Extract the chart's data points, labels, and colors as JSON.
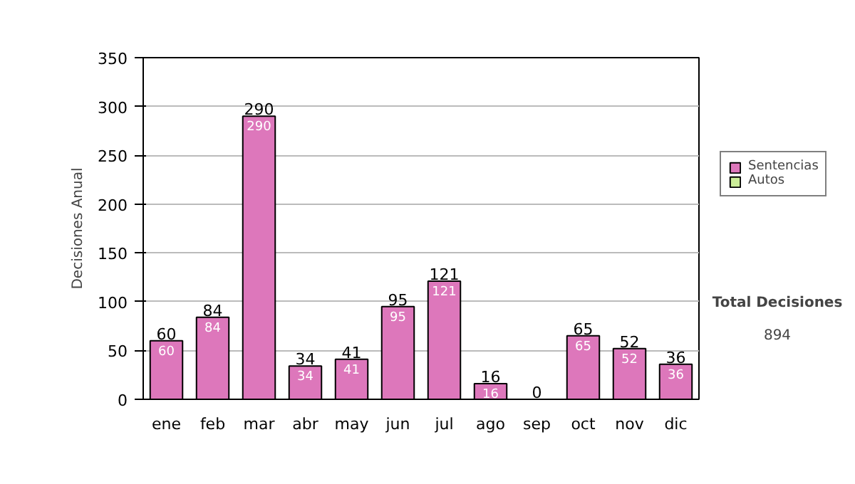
{
  "chart_data": {
    "type": "bar",
    "stacked": true,
    "ylabel": "Decisiones Anual",
    "categories": [
      "ene",
      "feb",
      "mar",
      "abr",
      "may",
      "jun",
      "jul",
      "ago",
      "sep",
      "oct",
      "nov",
      "dic"
    ],
    "series": [
      {
        "name": "Sentencias",
        "color": "#dd77bb",
        "values": [
          60,
          84,
          290,
          34,
          41,
          95,
          121,
          16,
          0,
          65,
          52,
          36
        ],
        "value_labels": [
          "60",
          "84",
          "290",
          "34",
          "41",
          "95",
          "121",
          "16",
          null,
          "65",
          "52",
          "36"
        ]
      },
      {
        "name": "Autos",
        "color": "#ccee99",
        "values": [
          0,
          0,
          0,
          0,
          0,
          0,
          0,
          0,
          0,
          0,
          0,
          0
        ]
      }
    ],
    "totals": [
      "60",
      "84",
      "290",
      "34",
      "41",
      "95",
      "121",
      "16",
      "0",
      "65",
      "52",
      "36"
    ],
    "ylim": [
      0,
      350
    ],
    "yticks": [
      0,
      50,
      100,
      150,
      200,
      250,
      300,
      350
    ],
    "grid": "y",
    "legend": "right",
    "annotations": [
      "Total Decisiones",
      "894"
    ]
  }
}
